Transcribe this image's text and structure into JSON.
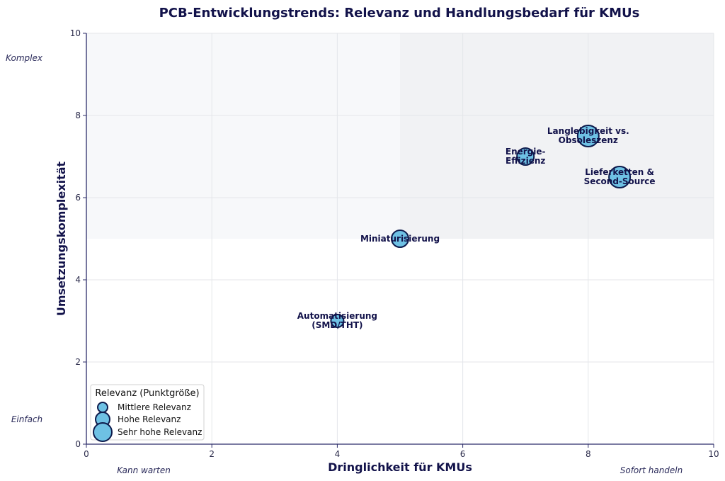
{
  "chart_data": {
    "type": "scatter",
    "title": "PCB-Entwicklungstrends: Relevanz und Handlungsbedarf für KMUs",
    "xlabel": "Dringlichkeit für KMUs",
    "ylabel": "Umsetzungskomplexität",
    "xlim": [
      0,
      10
    ],
    "ylim": [
      0,
      10
    ],
    "xticks": [
      "0",
      "2",
      "4",
      "6",
      "8",
      "10"
    ],
    "yticks": [
      "0",
      "2",
      "4",
      "6",
      "8",
      "10"
    ],
    "grid": true,
    "corner_labels": {
      "y_high": "Komplex",
      "y_low": "Einfach",
      "x_low": "Kann warten",
      "x_high": "Sofort handeln"
    },
    "points": [
      {
        "label_lines": [
          "Automatisierung",
          "(SMD/THT)"
        ],
        "x": 4,
        "y": 3,
        "relevance": 1
      },
      {
        "label_lines": [
          "Miniaturisierung"
        ],
        "x": 5,
        "y": 5,
        "relevance": 2
      },
      {
        "label_lines": [
          "Energie-",
          "Effizienz"
        ],
        "x": 7,
        "y": 7,
        "relevance": 2
      },
      {
        "label_lines": [
          "Langlebigkeit vs.",
          "Obsoleszenz"
        ],
        "x": 8,
        "y": 7.5,
        "relevance": 3
      },
      {
        "label_lines": [
          "Lieferketten &",
          "Second-Source"
        ],
        "x": 8.5,
        "y": 6.5,
        "relevance": 3
      }
    ],
    "legend": {
      "title": "Relevanz (Punktgröße)",
      "position": "lower-left",
      "entries": [
        {
          "label": "Mittlere Relevanz",
          "relevance": 1
        },
        {
          "label": "Hohe Relevanz",
          "relevance": 2
        },
        {
          "label": "Sehr hohe Relevanz",
          "relevance": 3
        }
      ]
    },
    "colors": {
      "marker_fill": "#6ec1e4",
      "marker_edge": "#0d1b4c",
      "text": "#12124a",
      "axis": "#2c2c6a",
      "shade_light": "#f7f8fa",
      "shade_dark": "#f1f2f4"
    }
  }
}
